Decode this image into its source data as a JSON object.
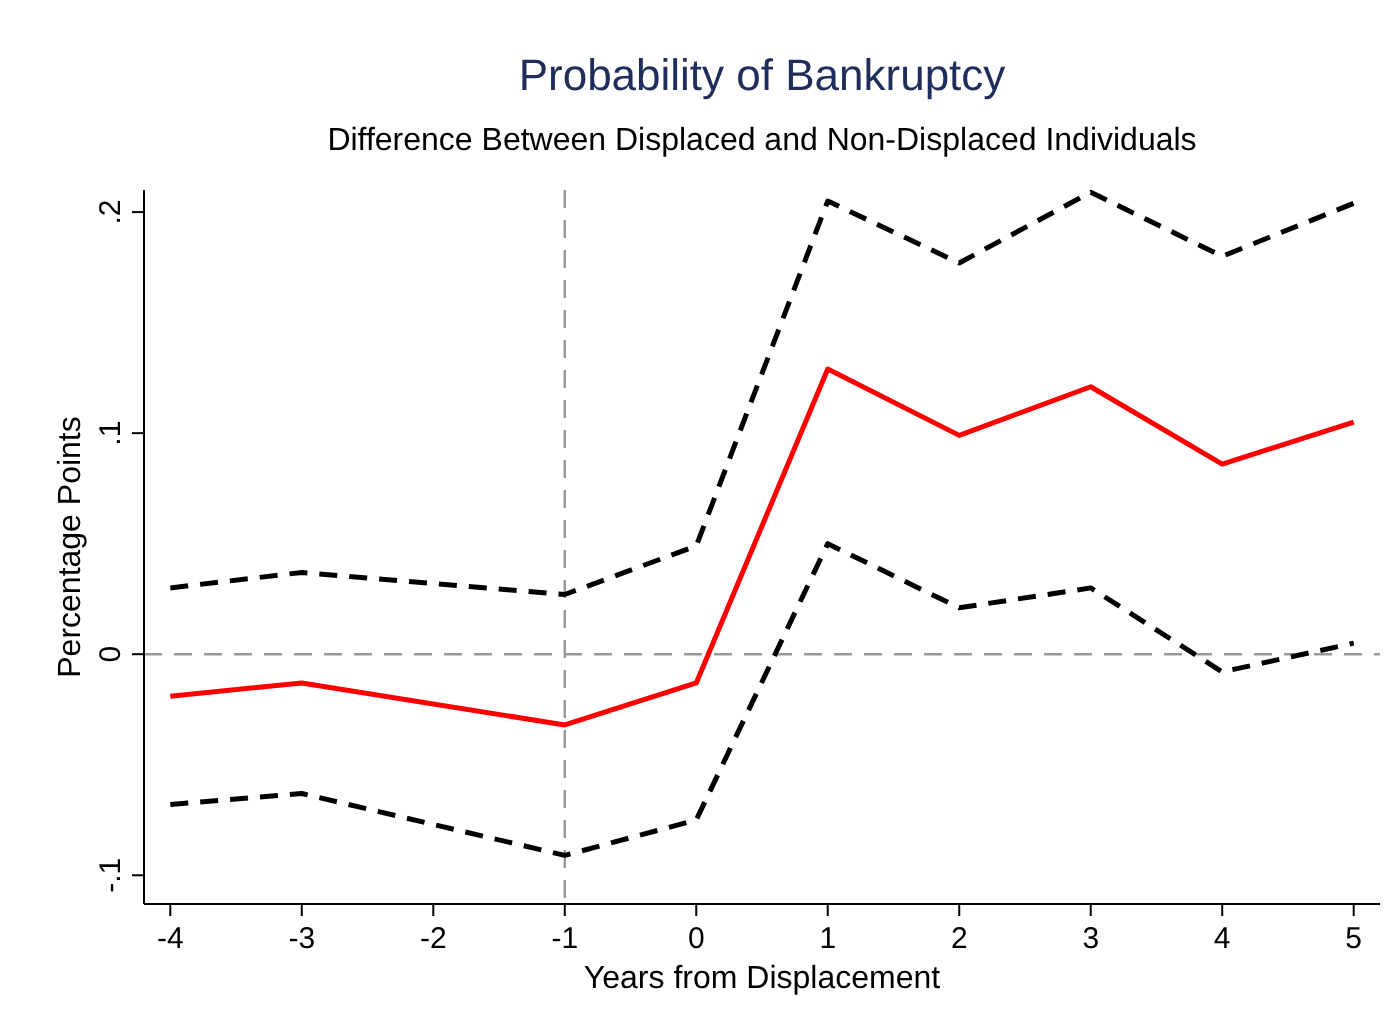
{
  "chart_data": {
    "type": "line",
    "title": "Probability of Bankruptcy",
    "subtitle": "Difference Between Displaced and Non-Displaced Individuals",
    "xlabel": "Years from Displacement",
    "ylabel": "Percentage Points",
    "series": [
      {
        "color": "#ff0000",
        "line_style": "solid",
        "x": [
          -4,
          -3,
          -1,
          0,
          1,
          2,
          3,
          4,
          5
        ],
        "values": [
          -0.019,
          -0.013,
          -0.032,
          -0.013,
          0.129,
          0.099,
          0.121,
          0.086,
          0.105
        ]
      },
      {
        "color": "#000000",
        "line_style": "dashed",
        "x": [
          -4,
          -3,
          -1,
          0,
          1,
          2,
          3,
          4,
          5
        ],
        "values": [
          0.03,
          0.037,
          0.027,
          0.049,
          0.205,
          0.177,
          0.209,
          0.18,
          0.204
        ]
      },
      {
        "color": "#000000",
        "line_style": "dashed",
        "x": [
          -4,
          -3,
          -1,
          0,
          1,
          2,
          3,
          4,
          5
        ],
        "values": [
          -0.068,
          -0.063,
          -0.091,
          -0.075,
          0.05,
          0.021,
          0.03,
          -0.008,
          0.005
        ]
      }
    ],
    "xlim": [
      -4.2,
      5.2
    ],
    "xticks": [
      -4,
      -3,
      -2,
      -1,
      0,
      1,
      2,
      3,
      4,
      5
    ],
    "ylim": [
      -0.113,
      0.21
    ],
    "yticks": [
      {
        "value": -0.1,
        "label": "-.1"
      },
      0,
      {
        "value": 0.1,
        "label": ".1"
      },
      {
        "value": 0.2,
        "label": ".2"
      }
    ],
    "ref_lines": [
      {
        "axis": "x",
        "value": -1,
        "color": "#999999",
        "line_style": "dashed"
      },
      {
        "axis": "y",
        "value": 0,
        "color": "#999999",
        "line_style": "dashed"
      }
    ],
    "grid": false
  }
}
